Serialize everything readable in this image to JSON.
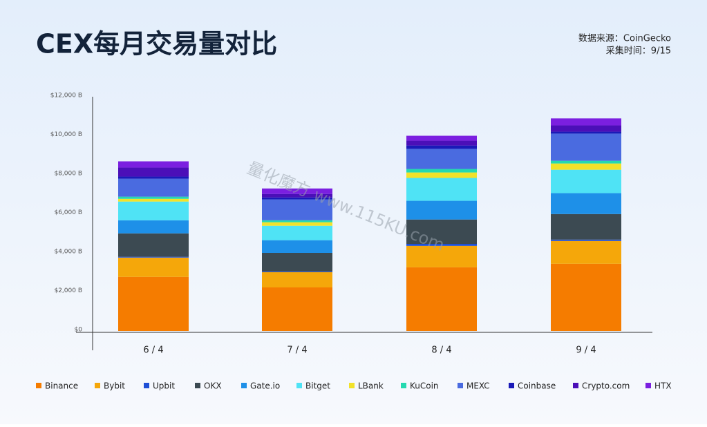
{
  "chart_data": {
    "type": "stacked-bar",
    "title": "CEX每月交易量对比",
    "source": "数据来源：CoinGecko",
    "collected": "采集时间：9/15",
    "watermark": "量化魔方 www.115KU.com",
    "categories": [
      "6 / 4",
      "7 / 4",
      "8 / 4",
      "9 / 4"
    ],
    "ylim": [
      0,
      12000
    ],
    "yticks": [
      {
        "value": 0,
        "label": "$0"
      },
      {
        "value": 2000,
        "label": "$2,000 B"
      },
      {
        "value": 4000,
        "label": "$4,000 B"
      },
      {
        "value": 6000,
        "label": "$6,000 B"
      },
      {
        "value": 8000,
        "label": "$8,000 B"
      },
      {
        "value": 10000,
        "label": "$10,000 B"
      },
      {
        "value": 12000,
        "label": "$12,000 B"
      }
    ],
    "legend": "bottom",
    "series": [
      {
        "name": "Binance",
        "color": "#f57c00",
        "values": [
          2770,
          2230,
          3260,
          3440
        ]
      },
      {
        "name": "Bybit",
        "color": "#f5a70a",
        "values": [
          990,
          780,
          1100,
          1170
        ]
      },
      {
        "name": "Upbit",
        "color": "#1e4fd6",
        "values": [
          40,
          40,
          100,
          70
        ]
      },
      {
        "name": "OKX",
        "color": "#3c4a52",
        "values": [
          1200,
          950,
          1250,
          1310
        ]
      },
      {
        "name": "Gate.io",
        "color": "#1e90e8",
        "values": [
          670,
          650,
          960,
          1070
        ]
      },
      {
        "name": "Bitget",
        "color": "#4fe3f5",
        "values": [
          960,
          740,
          1170,
          1200
        ]
      },
      {
        "name": "LBank",
        "color": "#f2e22a",
        "values": [
          140,
          180,
          280,
          320
        ]
      },
      {
        "name": "KuCoin",
        "color": "#25d9b0",
        "values": [
          110,
          100,
          180,
          140
        ]
      },
      {
        "name": "MEXC",
        "color": "#4a6be0",
        "values": [
          920,
          1070,
          1030,
          1390
        ]
      },
      {
        "name": "Coinbase",
        "color": "#1a1ab8",
        "values": [
          110,
          100,
          170,
          100
        ]
      },
      {
        "name": "Crypto.com",
        "color": "#4b0fb8",
        "values": [
          460,
          180,
          250,
          320
        ]
      },
      {
        "name": "HTX",
        "color": "#7b1fe0",
        "values": [
          320,
          280,
          250,
          360
        ]
      }
    ]
  }
}
